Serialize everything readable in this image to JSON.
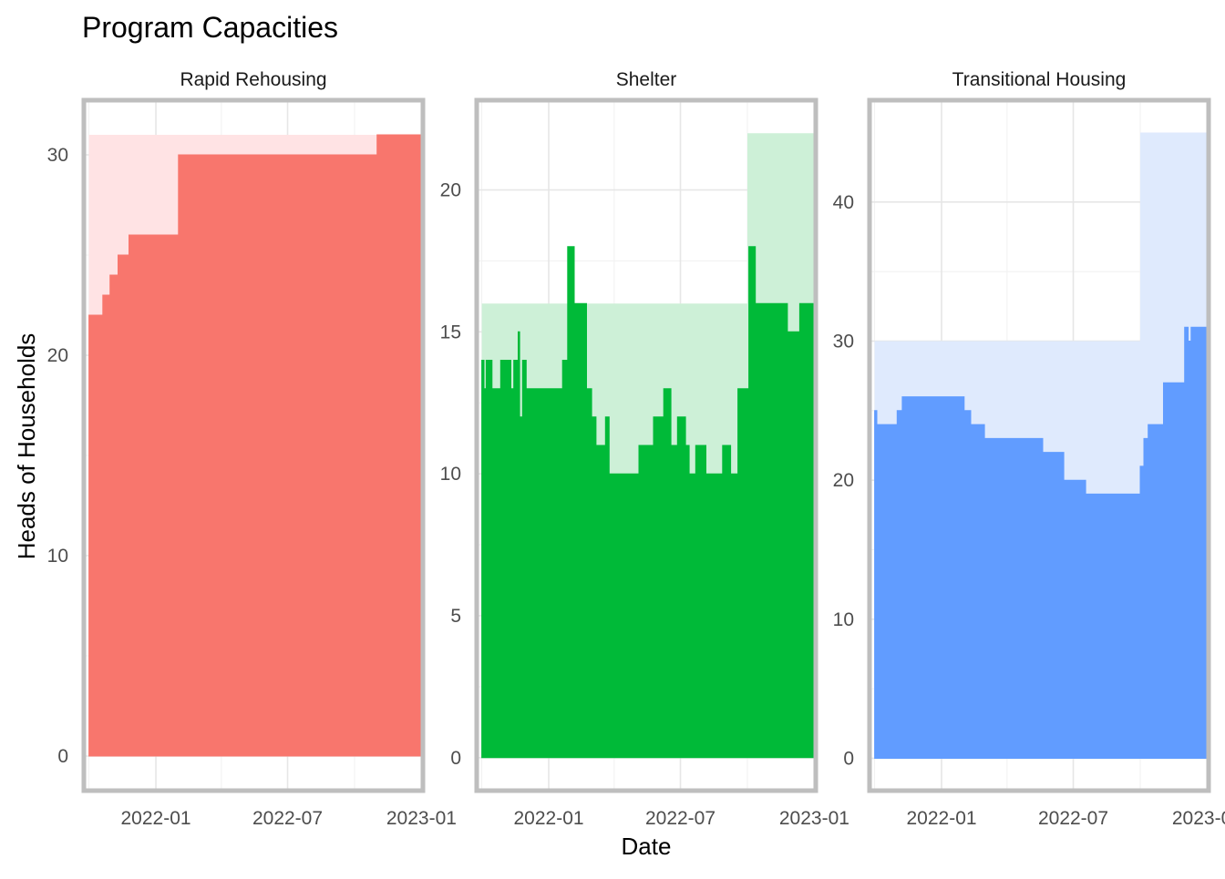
{
  "chart_data": {
    "type": "area",
    "title": "Program Capacities",
    "xlabel": "Date",
    "ylabel": "Heads of Households",
    "x_tick_labels": [
      "2022-01",
      "2022-07",
      "2023-01"
    ],
    "grid": true,
    "legend": "none",
    "panels": [
      {
        "name": "Rapid Rehousing",
        "color": "#F8766D",
        "capacity_color": "#FFE3E4",
        "ylim": [
          -1.5,
          32.5
        ],
        "y_ticks": [
          0,
          10,
          20,
          30
        ],
        "capacity": [
          {
            "x": "2021-10-01",
            "y": 31
          },
          {
            "x": "2022-12-31",
            "y": 31
          }
        ],
        "series": [
          {
            "x": "2021-10-01",
            "y": 22
          },
          {
            "x": "2021-10-20",
            "y": 23
          },
          {
            "x": "2021-10-30",
            "y": 24
          },
          {
            "x": "2021-11-10",
            "y": 25
          },
          {
            "x": "2021-11-25",
            "y": 26
          },
          {
            "x": "2022-02-01",
            "y": 30
          },
          {
            "x": "2022-11-01",
            "y": 31
          },
          {
            "x": "2022-12-31",
            "y": 31
          }
        ]
      },
      {
        "name": "Shelter",
        "color": "#00BA38",
        "capacity_color": "#CDF0D7",
        "ylim": [
          -1,
          23
        ],
        "y_ticks": [
          0,
          5,
          10,
          15,
          20
        ],
        "capacity": [
          {
            "x": "2021-10-01",
            "y": 16
          },
          {
            "x": "2022-10-01",
            "y": 22
          },
          {
            "x": "2022-12-31",
            "y": 22
          }
        ],
        "series": [
          {
            "x": "2021-10-01",
            "y": 14
          },
          {
            "x": "2021-10-04",
            "y": 13
          },
          {
            "x": "2021-10-07",
            "y": 14
          },
          {
            "x": "2021-10-15",
            "y": 13
          },
          {
            "x": "2021-10-27",
            "y": 14
          },
          {
            "x": "2021-11-10",
            "y": 13
          },
          {
            "x": "2021-11-14",
            "y": 14
          },
          {
            "x": "2021-11-20",
            "y": 15
          },
          {
            "x": "2021-11-22",
            "y": 12
          },
          {
            "x": "2021-11-26",
            "y": 14
          },
          {
            "x": "2021-12-01",
            "y": 13
          },
          {
            "x": "2022-01-20",
            "y": 14
          },
          {
            "x": "2022-01-27",
            "y": 18
          },
          {
            "x": "2022-02-05",
            "y": 16
          },
          {
            "x": "2022-02-22",
            "y": 13
          },
          {
            "x": "2022-03-01",
            "y": 12
          },
          {
            "x": "2022-03-07",
            "y": 11
          },
          {
            "x": "2022-03-20",
            "y": 12
          },
          {
            "x": "2022-03-25",
            "y": 10
          },
          {
            "x": "2022-05-05",
            "y": 11
          },
          {
            "x": "2022-05-25",
            "y": 12
          },
          {
            "x": "2022-06-08",
            "y": 13
          },
          {
            "x": "2022-06-18",
            "y": 11
          },
          {
            "x": "2022-06-27",
            "y": 12
          },
          {
            "x": "2022-07-08",
            "y": 11
          },
          {
            "x": "2022-07-13",
            "y": 10
          },
          {
            "x": "2022-07-22",
            "y": 11
          },
          {
            "x": "2022-08-05",
            "y": 10
          },
          {
            "x": "2022-08-28",
            "y": 11
          },
          {
            "x": "2022-09-08",
            "y": 10
          },
          {
            "x": "2022-09-18",
            "y": 13
          },
          {
            "x": "2022-10-03",
            "y": 18
          },
          {
            "x": "2022-10-12",
            "y": 16
          },
          {
            "x": "2022-11-25",
            "y": 15
          },
          {
            "x": "2022-12-12",
            "y": 16
          },
          {
            "x": "2022-12-31",
            "y": 16
          }
        ]
      },
      {
        "name": "Transitional Housing",
        "color": "#619CFF",
        "capacity_color": "#DFEAFD",
        "ylim": [
          -2,
          47
        ],
        "y_ticks": [
          0,
          10,
          20,
          30,
          40
        ],
        "capacity": [
          {
            "x": "2021-10-01",
            "y": 30
          },
          {
            "x": "2022-10-01",
            "y": 45
          },
          {
            "x": "2022-12-31",
            "y": 45
          }
        ],
        "series": [
          {
            "x": "2021-10-01",
            "y": 25
          },
          {
            "x": "2021-10-04",
            "y": 24
          },
          {
            "x": "2021-11-01",
            "y": 25
          },
          {
            "x": "2021-11-08",
            "y": 26
          },
          {
            "x": "2022-02-01",
            "y": 25
          },
          {
            "x": "2022-02-10",
            "y": 24
          },
          {
            "x": "2022-03-01",
            "y": 23
          },
          {
            "x": "2022-05-20",
            "y": 22
          },
          {
            "x": "2022-06-18",
            "y": 20
          },
          {
            "x": "2022-07-18",
            "y": 19
          },
          {
            "x": "2022-10-01",
            "y": 21
          },
          {
            "x": "2022-10-06",
            "y": 23
          },
          {
            "x": "2022-10-12",
            "y": 24
          },
          {
            "x": "2022-11-02",
            "y": 27
          },
          {
            "x": "2022-12-01",
            "y": 31
          },
          {
            "x": "2022-12-06",
            "y": 30
          },
          {
            "x": "2022-12-10",
            "y": 31
          },
          {
            "x": "2022-12-31",
            "y": 31
          }
        ]
      }
    ]
  }
}
